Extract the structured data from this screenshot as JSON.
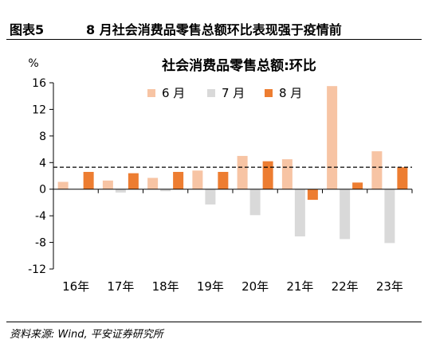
{
  "header": {
    "figure_no": "图表5",
    "figure_title": "8 月社会消费品零售总额环比表现强于疫情前"
  },
  "source": "资料来源: Wind, 平安证券研究所",
  "chart_data": {
    "type": "bar",
    "title": "社会消费品零售总额:环比",
    "y_unit": "%",
    "categories": [
      "16年",
      "17年",
      "18年",
      "19年",
      "20年",
      "21年",
      "22年",
      "23年"
    ],
    "series": [
      {
        "name": "6 月",
        "color": "#F7C4A4",
        "values": [
          1.1,
          1.3,
          1.7,
          2.8,
          5.0,
          4.5,
          15.5,
          5.7
        ]
      },
      {
        "name": "7 月",
        "color": "#D9D9D9",
        "values": [
          0.0,
          -0.5,
          -0.3,
          -2.3,
          -3.9,
          -7.1,
          -7.5,
          -8.1
        ]
      },
      {
        "name": "8 月",
        "color": "#ED7D31",
        "values": [
          2.6,
          2.4,
          2.6,
          2.6,
          4.2,
          -1.6,
          1.0,
          3.3
        ]
      }
    ],
    "reference_line": {
      "value": 3.3,
      "style": "dashed"
    },
    "ylim": [
      -12,
      16
    ],
    "yticks": [
      -12,
      -8,
      -4,
      0,
      4,
      8,
      12,
      16
    ],
    "legend_position": "top"
  }
}
